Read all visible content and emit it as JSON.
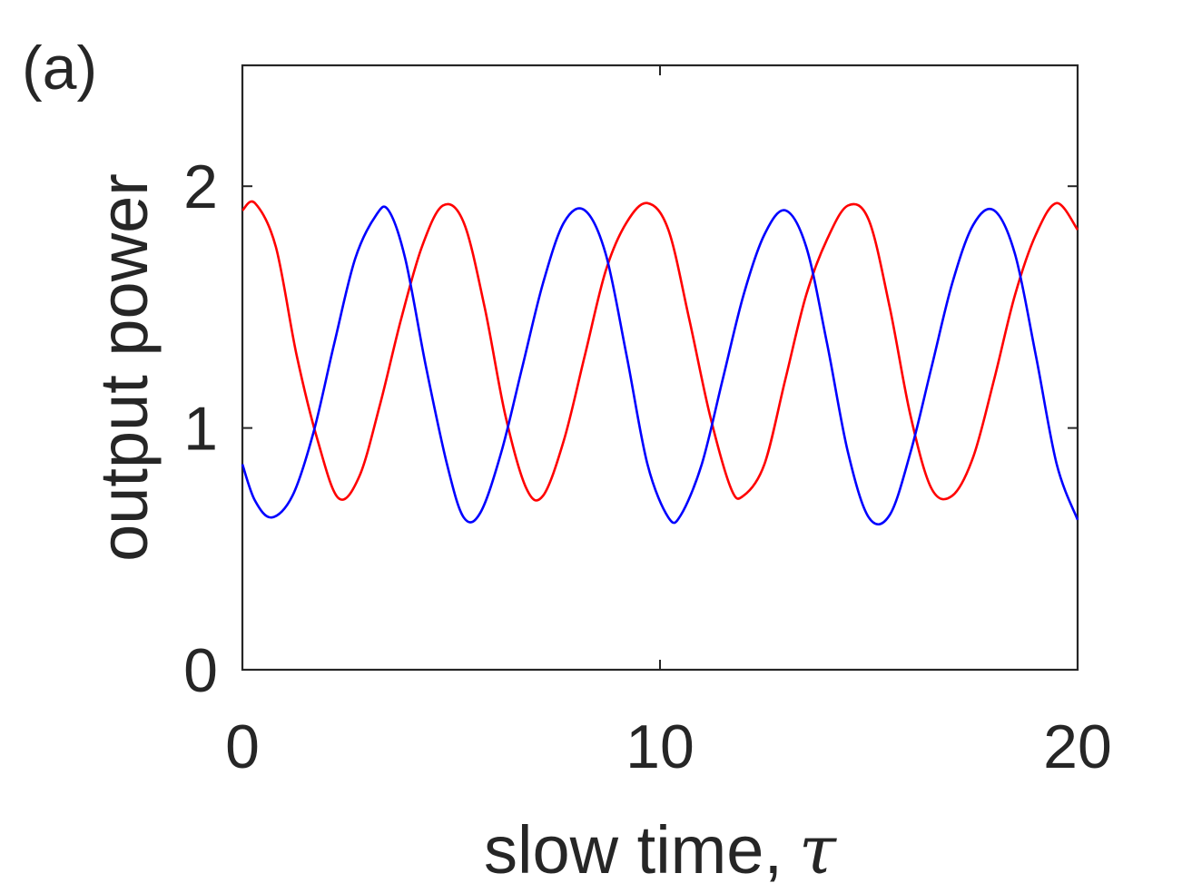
{
  "panel_label": "(a)",
  "chart_data": {
    "type": "line",
    "xlabel": "slow time,",
    "xlabel_symbol": "τ",
    "ylabel": "output power",
    "xlim": [
      0,
      20
    ],
    "ylim": [
      0,
      2.5
    ],
    "xticks": [
      0,
      10,
      20
    ],
    "yticks": [
      0,
      1,
      2
    ],
    "grid": false,
    "box": true,
    "series": [
      {
        "color": "#ff0000",
        "x": [
          0,
          0.3,
          0.8,
          1.3,
          1.8,
          2.3,
          2.8,
          3.3,
          3.8,
          4.3,
          4.8,
          5.3,
          5.8,
          6.3,
          6.8,
          7.2,
          7.7,
          8.2,
          8.7,
          9.2,
          9.7,
          10.2,
          10.7,
          11.2,
          11.7,
          12.0,
          12.5,
          13.0,
          13.5,
          14.0,
          14.5,
          15.0,
          15.5,
          16.0,
          16.5,
          17.0,
          17.5,
          18.0,
          18.5,
          19.0,
          19.5,
          20.0
        ],
        "y": [
          1.9,
          1.93,
          1.75,
          1.3,
          0.95,
          0.71,
          0.8,
          1.1,
          1.45,
          1.75,
          1.92,
          1.85,
          1.5,
          1.05,
          0.75,
          0.72,
          0.95,
          1.3,
          1.65,
          1.85,
          1.93,
          1.82,
          1.45,
          1.05,
          0.75,
          0.72,
          0.85,
          1.2,
          1.55,
          1.78,
          1.92,
          1.86,
          1.5,
          1.05,
          0.75,
          0.72,
          0.88,
          1.2,
          1.55,
          1.8,
          1.93,
          1.82
        ]
      },
      {
        "color": "#0000ff",
        "x": [
          0,
          0.3,
          0.7,
          1.2,
          1.7,
          2.2,
          2.7,
          3.2,
          3.5,
          3.9,
          4.4,
          4.9,
          5.3,
          5.7,
          6.2,
          6.7,
          7.2,
          7.7,
          8.2,
          8.7,
          9.2,
          9.7,
          10.2,
          10.5,
          11.0,
          11.5,
          12.0,
          12.5,
          13.0,
          13.5,
          14.0,
          14.5,
          15.0,
          15.5,
          16.0,
          16.5,
          17.0,
          17.5,
          18.0,
          18.5,
          19.0,
          19.5,
          20.0
        ],
        "y": [
          0.85,
          0.7,
          0.63,
          0.72,
          0.98,
          1.35,
          1.7,
          1.88,
          1.9,
          1.7,
          1.25,
          0.85,
          0.63,
          0.65,
          0.9,
          1.25,
          1.6,
          1.85,
          1.9,
          1.72,
          1.3,
          0.85,
          0.63,
          0.64,
          0.85,
          1.2,
          1.55,
          1.8,
          1.9,
          1.75,
          1.35,
          0.9,
          0.63,
          0.64,
          0.9,
          1.25,
          1.6,
          1.84,
          1.9,
          1.72,
          1.3,
          0.85,
          0.62
        ]
      }
    ]
  }
}
